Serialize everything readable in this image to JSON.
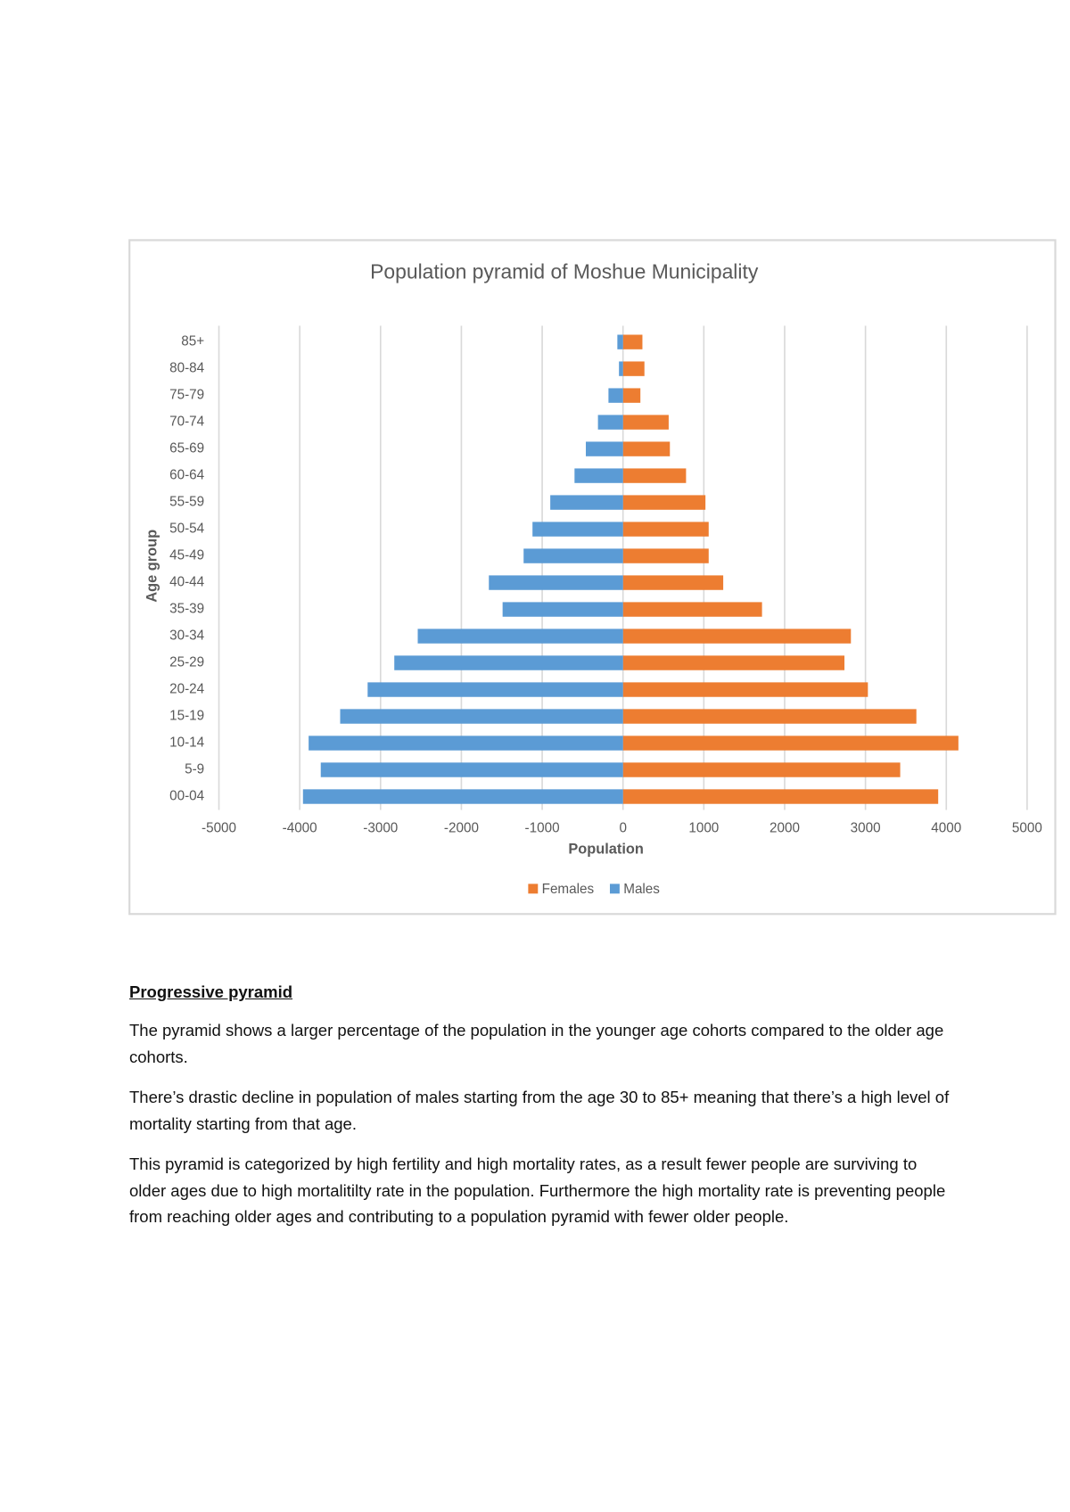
{
  "chart_data": {
    "type": "bar",
    "orientation": "horizontal",
    "stacked": true,
    "title": "Population pyramid of Moshue  Municipality",
    "x_label": "Population",
    "y_label": "Age group",
    "categories": [
      "00-04",
      "5-9",
      "10-14",
      "15-19",
      "20-24",
      "25-29",
      "30-34",
      "35-39",
      "40-44",
      "45-49",
      "50-54",
      "55-59",
      "60-64",
      "65-69",
      "70-74",
      "75-79",
      "80-84",
      "85+"
    ],
    "series": [
      {
        "name": "Females",
        "color": "#ed7d31",
        "values": [
          3900,
          3430,
          4150,
          3630,
          3030,
          2740,
          2820,
          1720,
          1240,
          1060,
          1060,
          1020,
          780,
          580,
          565,
          215,
          265,
          240
        ]
      },
      {
        "name": "Males",
        "color": "#5b9bd5",
        "values": [
          -3960,
          -3740,
          -3890,
          -3500,
          -3160,
          -2830,
          -2540,
          -1490,
          -1660,
          -1230,
          -1120,
          -900,
          -600,
          -460,
          -310,
          -180,
          -50,
          -70
        ]
      }
    ],
    "xlim": [
      -5000,
      5000
    ],
    "xticks": [
      -5000,
      -4000,
      -3000,
      -2000,
      -1000,
      0,
      1000,
      2000,
      3000,
      4000,
      5000
    ],
    "grid": true,
    "legend": "bottom"
  },
  "document": {
    "heading": "Progressive pyramid",
    "paragraphs": [
      "The pyramid shows a larger percentage of the population in the younger age cohorts compared to the older age cohorts.",
      "There’s  drastic decline in population of males starting from the age 30 to 85+ meaning that there’s a high level of mortality starting from that age.",
      "This pyramid is categorized by high fertility and high mortality rates, as a result fewer people are surviving to older ages due to high mortalitilty rate in the population. Furthermore the high mortality rate is preventing people from reaching older ages and contributing to a population pyramid with fewer older people."
    ]
  }
}
